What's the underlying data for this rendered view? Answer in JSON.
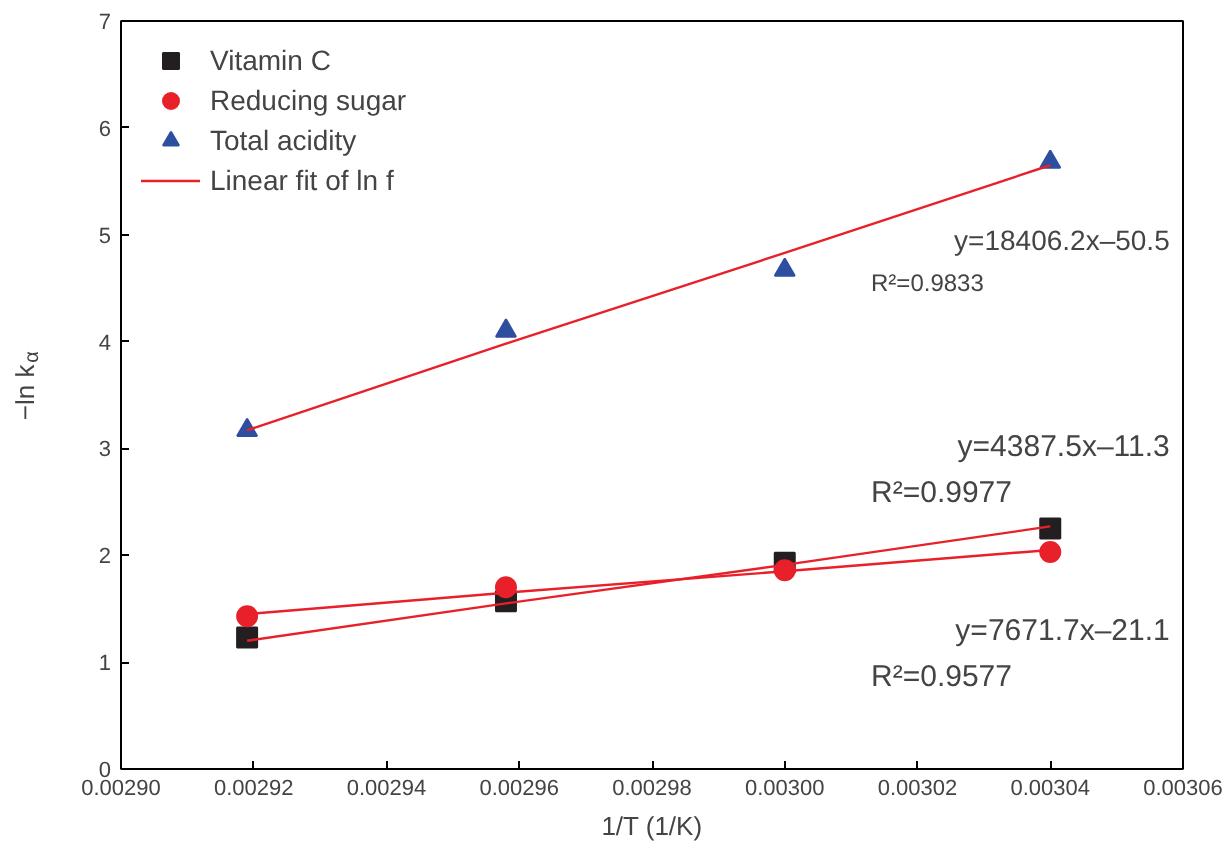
{
  "chart_data": {
    "type": "scatter",
    "xlabel": "1/T (1/K)",
    "ylabel": "−ln k$_{α}$",
    "x": [
      0.002919,
      0.002958,
      0.003,
      0.00304
    ],
    "series": [
      {
        "name": "Vitamin C",
        "color": "#231f20",
        "marker": "square",
        "values": [
          1.23,
          1.57,
          1.93,
          2.25
        ]
      },
      {
        "name": "Reducing sugar",
        "color": "#e8202a",
        "marker": "circle",
        "values": [
          1.43,
          1.7,
          1.86,
          2.03
        ]
      },
      {
        "name": "Total acidity",
        "color": "#2e4fa0",
        "marker": "triangle",
        "values": [
          3.17,
          4.1,
          4.67,
          5.68
        ]
      },
      {
        "name": "Linear fit of ln f",
        "type": "line",
        "color": "#e8202a",
        "values": [
          3.17,
          3.98,
          4.83,
          5.65
        ]
      },
      {
        "type": "line",
        "color": "#e8202a",
        "values": [
          1.2,
          1.55,
          1.91,
          2.27
        ]
      },
      {
        "type": "line",
        "color": "#e8202a",
        "values": [
          1.45,
          1.65,
          1.85,
          2.05
        ]
      }
    ],
    "xlim": [
      0.0029,
      0.00306
    ],
    "ylim": [
      0,
      7
    ],
    "xticks": [
      {
        "value": 0.0029,
        "label": "0.00290"
      },
      {
        "value": 0.00292,
        "label": "0.00292"
      },
      {
        "value": 0.00294,
        "label": "0.00294"
      },
      {
        "value": 0.00296,
        "label": "0.00296"
      },
      {
        "value": 0.00298,
        "label": "0.00298"
      },
      {
        "value": 0.003,
        "label": "0.00300"
      },
      {
        "value": 0.00302,
        "label": "0.00302"
      },
      {
        "value": 0.00304,
        "label": "0.00304"
      },
      {
        "value": 0.00306,
        "label": "0.00306"
      }
    ],
    "yticks": [
      0,
      1,
      2,
      3,
      4,
      5,
      6,
      7
    ],
    "annotations": [
      "y=18406.2x–50.5",
      "R²=0.9833",
      "y=4387.5x–11.3",
      "R²=0.9977",
      "y=7671.7x–21.1",
      "R²=0.9577"
    ],
    "legend": "top left",
    "grid": false,
    "line_style": "solid"
  }
}
